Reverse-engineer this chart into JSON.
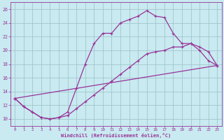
{
  "xlabel": "Windchill (Refroidissement éolien,°C)",
  "background_color": "#c8eaf0",
  "grid_color": "#9bbfc8",
  "line_color": "#993399",
  "xlim": [
    -0.5,
    23.5
  ],
  "ylim": [
    9,
    27
  ],
  "xticks": [
    0,
    1,
    2,
    3,
    4,
    5,
    6,
    7,
    8,
    9,
    10,
    11,
    12,
    13,
    14,
    15,
    16,
    17,
    18,
    19,
    20,
    21,
    22,
    23
  ],
  "yticks": [
    10,
    12,
    14,
    16,
    18,
    20,
    22,
    24,
    26
  ],
  "top_curve_x": [
    0,
    1,
    2,
    3,
    4,
    5,
    6,
    7,
    8,
    9,
    10,
    11,
    12,
    13,
    14,
    15,
    16,
    17,
    18,
    19,
    20,
    21,
    22,
    23
  ],
  "top_curve_y": [
    13,
    11.8,
    11,
    10.2,
    10,
    10.2,
    11,
    14.5,
    18,
    21,
    22.5,
    22.5,
    24,
    24.5,
    25,
    25.8,
    25,
    24.8,
    22.5,
    21,
    21,
    20,
    18.5,
    17.8
  ],
  "mid_curve_x": [
    0,
    1,
    2,
    3,
    4,
    5,
    6,
    7,
    8,
    9,
    10,
    11,
    12,
    13,
    14,
    15,
    16,
    17,
    18,
    19,
    20,
    21,
    22,
    23
  ],
  "mid_curve_y": [
    13,
    11.8,
    11,
    10.2,
    10,
    10.2,
    10.5,
    11.5,
    12.5,
    13.5,
    14.5,
    15.5,
    16.5,
    17.5,
    18.5,
    19.5,
    19.8,
    20,
    20.5,
    20.5,
    21,
    20.5,
    19.8,
    17.8
  ],
  "bot_line_x": [
    0,
    23
  ],
  "bot_line_y": [
    13,
    17.8
  ],
  "marker": "+"
}
